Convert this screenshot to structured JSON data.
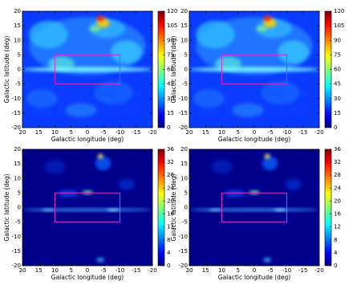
{
  "chart_data": [
    {
      "type": "heatmap",
      "xlabel": "Galactic longitude (deg)",
      "ylabel": "Galactic latitude (deg)",
      "xlim": [
        20,
        -20
      ],
      "ylim": [
        -20,
        20
      ],
      "xticks": [
        20,
        15,
        10,
        5,
        0,
        -5,
        -10,
        -15,
        -20
      ],
      "yticks": [
        -20,
        -15,
        -10,
        -5,
        0,
        5,
        10,
        15,
        20
      ],
      "clim": [
        0,
        120
      ],
      "cticks": [
        0,
        15,
        30,
        45,
        60,
        75,
        90,
        105,
        120
      ],
      "box": {
        "x": [
          10,
          -10
        ],
        "y": [
          -5,
          5
        ],
        "color": "#cc33cc"
      }
    },
    {
      "type": "heatmap",
      "xlabel": "Galactic longitude (deg)",
      "ylabel": "Galactic latitude (deg)",
      "xlim": [
        20,
        -20
      ],
      "ylim": [
        -20,
        20
      ],
      "xticks": [
        20,
        15,
        10,
        5,
        0,
        -5,
        -10,
        -15,
        -20
      ],
      "yticks": [
        -20,
        -15,
        -10,
        -5,
        0,
        5,
        10,
        15,
        20
      ],
      "clim": [
        0,
        120
      ],
      "cticks": [
        0,
        15,
        30,
        45,
        60,
        75,
        90,
        105,
        120
      ],
      "box": {
        "x": [
          10,
          -10
        ],
        "y": [
          -5,
          5
        ],
        "color": "#cc33cc"
      }
    },
    {
      "type": "heatmap",
      "xlabel": "Galactic longitude (deg)",
      "ylabel": "Galactic latitude (deg)",
      "xlim": [
        20,
        -20
      ],
      "ylim": [
        -20,
        20
      ],
      "xticks": [
        20,
        15,
        10,
        5,
        0,
        -5,
        -10,
        -15,
        -20
      ],
      "yticks": [
        -20,
        -15,
        -10,
        -5,
        0,
        5,
        10,
        15,
        20
      ],
      "clim": [
        0,
        36
      ],
      "cticks": [
        0,
        4,
        8,
        12,
        16,
        20,
        24,
        28,
        32,
        36
      ],
      "box": {
        "x": [
          10,
          -10
        ],
        "y": [
          -5,
          5
        ],
        "color": "#cc33cc"
      }
    },
    {
      "type": "heatmap",
      "xlabel": "Galactic longitude (deg)",
      "ylabel": "Galactic latitude (deg)",
      "xlim": [
        20,
        -20
      ],
      "ylim": [
        -20,
        20
      ],
      "xticks": [
        20,
        15,
        10,
        5,
        0,
        -5,
        -10,
        -15,
        -20
      ],
      "yticks": [
        -20,
        -15,
        -10,
        -5,
        0,
        5,
        10,
        15,
        20
      ],
      "clim": [
        0,
        36
      ],
      "cticks": [
        0,
        4,
        8,
        12,
        16,
        20,
        24,
        28,
        32,
        36
      ],
      "box": {
        "x": [
          10,
          -10
        ],
        "y": [
          -5,
          5
        ],
        "color": "#cc33cc"
      }
    }
  ]
}
